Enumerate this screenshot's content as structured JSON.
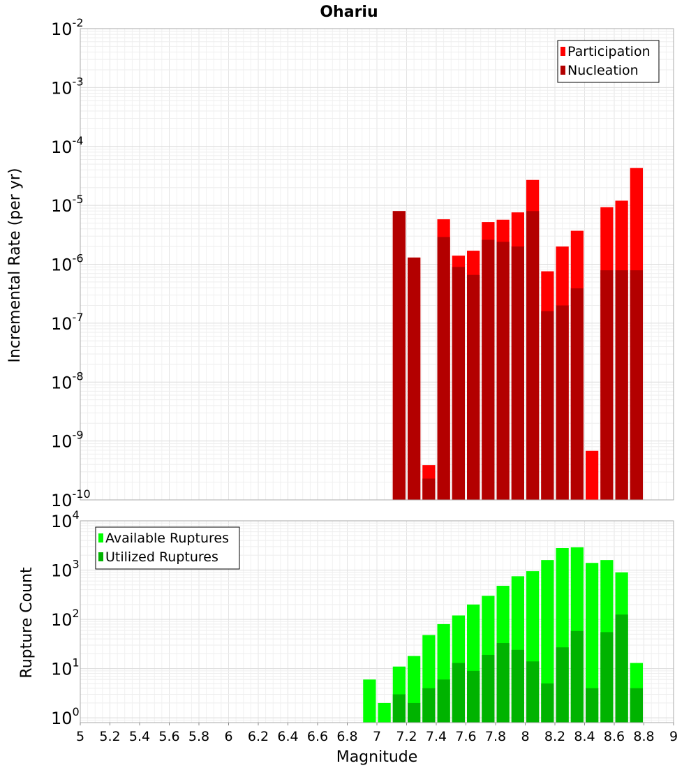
{
  "chart_data": [
    {
      "type": "bar",
      "title": "Ohariu",
      "ylabel": "Incremental Rate (per yr)",
      "xlabel": "",
      "yscale": "log",
      "ylim": [
        1e-10,
        0.01
      ],
      "xlim": [
        5,
        9
      ],
      "x_ticks": [
        "5",
        "5.2",
        "5.4",
        "5.6",
        "5.8",
        "6",
        "6.2",
        "6.4",
        "6.6",
        "6.8",
        "7",
        "7.2",
        "7.4",
        "7.6",
        "7.8",
        "8",
        "8.2",
        "8.4",
        "8.6",
        "8.8",
        "9"
      ],
      "y_ticks": [
        {
          "base": "10",
          "exp": "-10"
        },
        {
          "base": "10",
          "exp": "-9"
        },
        {
          "base": "10",
          "exp": "-8"
        },
        {
          "base": "10",
          "exp": "-7"
        },
        {
          "base": "10",
          "exp": "-6"
        },
        {
          "base": "10",
          "exp": "-5"
        },
        {
          "base": "10",
          "exp": "-4"
        },
        {
          "base": "10",
          "exp": "-3"
        },
        {
          "base": "10",
          "exp": "-2"
        }
      ],
      "legend_position": "top-right",
      "x": [
        7.15,
        7.25,
        7.35,
        7.45,
        7.55,
        7.65,
        7.75,
        7.85,
        7.95,
        8.05,
        8.15,
        8.25,
        8.35,
        8.45,
        8.55,
        8.65,
        8.75
      ],
      "series": [
        {
          "name": "Participation",
          "color": "#ff0000",
          "values": [
            8e-06,
            1.3e-06,
            3.9e-10,
            5.8e-06,
            1.4e-06,
            1.7e-06,
            5.2e-06,
            5.7e-06,
            7.6e-06,
            2.7e-05,
            7.6e-07,
            2e-06,
            3.7e-06,
            6.8e-10,
            9.3e-06,
            1.2e-05,
            4.3e-05
          ]
        },
        {
          "name": "Nucleation",
          "color": "#b30000",
          "values": [
            8e-06,
            1.3e-06,
            2.3e-10,
            2.9e-06,
            9e-07,
            6.6e-07,
            2.6e-06,
            2.4e-06,
            2e-06,
            8e-06,
            1.6e-07,
            2e-07,
            3.9e-07,
            null,
            7.9e-07,
            7.9e-07,
            7.9e-07
          ]
        }
      ]
    },
    {
      "type": "bar",
      "title": "",
      "ylabel": "Rupture Count",
      "xlabel": "Magnitude",
      "yscale": "log",
      "ylim": [
        0.8,
        10000
      ],
      "xlim": [
        5,
        9
      ],
      "x_ticks": [
        "5",
        "5.2",
        "5.4",
        "5.6",
        "5.8",
        "6",
        "6.2",
        "6.4",
        "6.6",
        "6.8",
        "7",
        "7.2",
        "7.4",
        "7.6",
        "7.8",
        "8",
        "8.2",
        "8.4",
        "8.6",
        "8.8",
        "9"
      ],
      "y_ticks": [
        {
          "base": "10",
          "exp": "0"
        },
        {
          "base": "10",
          "exp": "1"
        },
        {
          "base": "10",
          "exp": "2"
        },
        {
          "base": "10",
          "exp": "3"
        },
        {
          "base": "10",
          "exp": "4"
        }
      ],
      "legend_position": "top-left",
      "x": [
        6.95,
        7.05,
        7.15,
        7.25,
        7.35,
        7.45,
        7.55,
        7.65,
        7.75,
        7.85,
        7.95,
        8.05,
        8.15,
        8.25,
        8.35,
        8.45,
        8.55,
        8.65,
        8.75
      ],
      "series": [
        {
          "name": "Available Ruptures",
          "color": "#00ff00",
          "values": [
            6,
            2,
            11,
            18,
            48,
            80,
            120,
            200,
            300,
            480,
            750,
            950,
            1600,
            2800,
            2900,
            1400,
            1600,
            900,
            13
          ]
        },
        {
          "name": "Utilized Ruptures",
          "color": "#00b300",
          "values": [
            null,
            null,
            3,
            2,
            4,
            6,
            13,
            9,
            19,
            33,
            24,
            14,
            5,
            27,
            58,
            4,
            55,
            125,
            4
          ]
        }
      ]
    }
  ]
}
